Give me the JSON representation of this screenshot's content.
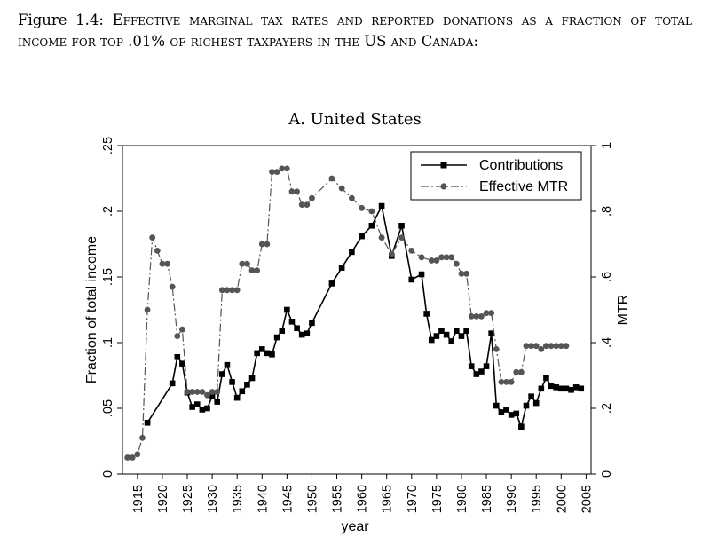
{
  "caption": {
    "prefix": "Figure 1.4: ",
    "text": "Effective marginal tax rates and reported donations as a fraction of total income for top .01% of richest taxpayers in the US and Canada:"
  },
  "chart_data": {
    "type": "line",
    "title": "A. United States",
    "xlabel": "year",
    "ylabel_left": "Fraction of total income",
    "ylabel_right": "MTR",
    "xlim": [
      1912,
      2006
    ],
    "ylim_left": [
      0,
      0.25
    ],
    "ylim_right": [
      0,
      1
    ],
    "x_ticks": [
      1915,
      1920,
      1925,
      1930,
      1935,
      1940,
      1945,
      1950,
      1955,
      1960,
      1965,
      1970,
      1975,
      1980,
      1985,
      1990,
      1995,
      2000,
      2005
    ],
    "x_tick_labels": [
      "1915",
      "1920",
      "1925",
      "1930",
      "1935",
      "1940",
      "1945",
      "1950",
      "1955",
      "1960",
      "1965",
      "1970",
      "1975",
      "1980",
      "1985",
      "1990",
      "1995",
      "2000",
      "2005"
    ],
    "y_left_ticks": [
      0,
      0.05,
      0.1,
      0.15,
      0.2,
      0.25
    ],
    "y_left_tick_labels": [
      "0",
      ".05",
      ".1",
      ".15",
      ".2",
      ".25"
    ],
    "y_right_ticks": [
      0,
      0.2,
      0.4,
      0.6,
      0.8,
      1
    ],
    "y_right_tick_labels": [
      "0",
      ".2",
      ".4",
      ".6",
      ".8",
      "1"
    ],
    "grid": false,
    "legend_position": "top-right",
    "series": [
      {
        "name": "Contributions",
        "axis": "left",
        "style": "solid",
        "marker": "square",
        "color": "#000000",
        "x": [
          1917,
          1922,
          1923,
          1924,
          1925,
          1926,
          1927,
          1928,
          1929,
          1930,
          1931,
          1932,
          1933,
          1934,
          1935,
          1936,
          1937,
          1938,
          1939,
          1940,
          1941,
          1942,
          1943,
          1944,
          1945,
          1946,
          1947,
          1948,
          1949,
          1950,
          1954,
          1956,
          1958,
          1960,
          1962,
          1964,
          1966,
          1968,
          1970,
          1972,
          1973,
          1974,
          1975,
          1976,
          1977,
          1978,
          1979,
          1980,
          1981,
          1982,
          1983,
          1984,
          1985,
          1986,
          1987,
          1988,
          1989,
          1990,
          1991,
          1992,
          1993,
          1994,
          1995,
          1996,
          1997,
          1998,
          1999,
          2000,
          2001,
          2002,
          2003,
          2004
        ],
        "y": [
          0.039,
          0.069,
          0.089,
          0.084,
          0.062,
          0.051,
          0.053,
          0.049,
          0.05,
          0.059,
          0.055,
          0.076,
          0.083,
          0.07,
          0.058,
          0.063,
          0.068,
          0.073,
          0.092,
          0.095,
          0.092,
          0.091,
          0.104,
          0.109,
          0.125,
          0.116,
          0.111,
          0.106,
          0.107,
          0.115,
          0.145,
          0.157,
          0.169,
          0.181,
          0.189,
          0.204,
          0.166,
          0.189,
          0.148,
          0.152,
          0.122,
          0.102,
          0.105,
          0.109,
          0.106,
          0.101,
          0.109,
          0.105,
          0.109,
          0.082,
          0.076,
          0.078,
          0.082,
          0.107,
          0.052,
          0.047,
          0.049,
          0.045,
          0.046,
          0.036,
          0.052,
          0.059,
          0.054,
          0.065,
          0.073,
          0.067,
          0.066,
          0.065,
          0.065,
          0.064,
          0.066,
          0.065
        ]
      },
      {
        "name": "Effective MTR",
        "axis": "right",
        "style": "dash-dot",
        "marker": "circle",
        "color": "#555555",
        "x": [
          1913,
          1914,
          1915,
          1916,
          1917,
          1918,
          1919,
          1920,
          1921,
          1922,
          1923,
          1924,
          1925,
          1926,
          1927,
          1928,
          1929,
          1930,
          1931,
          1932,
          1933,
          1934,
          1935,
          1936,
          1937,
          1938,
          1939,
          1940,
          1941,
          1942,
          1943,
          1944,
          1945,
          1946,
          1947,
          1948,
          1949,
          1950,
          1954,
          1956,
          1958,
          1960,
          1962,
          1964,
          1966,
          1968,
          1970,
          1972,
          1974,
          1975,
          1976,
          1977,
          1978,
          1979,
          1980,
          1981,
          1982,
          1983,
          1984,
          1985,
          1986,
          1987,
          1988,
          1989,
          1990,
          1991,
          1992,
          1993,
          1994,
          1995,
          1996,
          1997,
          1998,
          1999,
          2000,
          2001
        ],
        "y": [
          0.05,
          0.05,
          0.06,
          0.11,
          0.5,
          0.72,
          0.68,
          0.64,
          0.64,
          0.57,
          0.42,
          0.44,
          0.25,
          0.25,
          0.25,
          0.25,
          0.24,
          0.25,
          0.25,
          0.56,
          0.56,
          0.56,
          0.56,
          0.64,
          0.64,
          0.62,
          0.62,
          0.7,
          0.7,
          0.92,
          0.92,
          0.93,
          0.93,
          0.86,
          0.86,
          0.82,
          0.82,
          0.84,
          0.9,
          0.87,
          0.84,
          0.81,
          0.8,
          0.72,
          0.67,
          0.72,
          0.68,
          0.66,
          0.65,
          0.65,
          0.66,
          0.66,
          0.66,
          0.64,
          0.61,
          0.61,
          0.48,
          0.48,
          0.48,
          0.49,
          0.49,
          0.38,
          0.28,
          0.28,
          0.28,
          0.31,
          0.31,
          0.39,
          0.39,
          0.39,
          0.38,
          0.39,
          0.39,
          0.39,
          0.39,
          0.39
        ]
      }
    ]
  }
}
